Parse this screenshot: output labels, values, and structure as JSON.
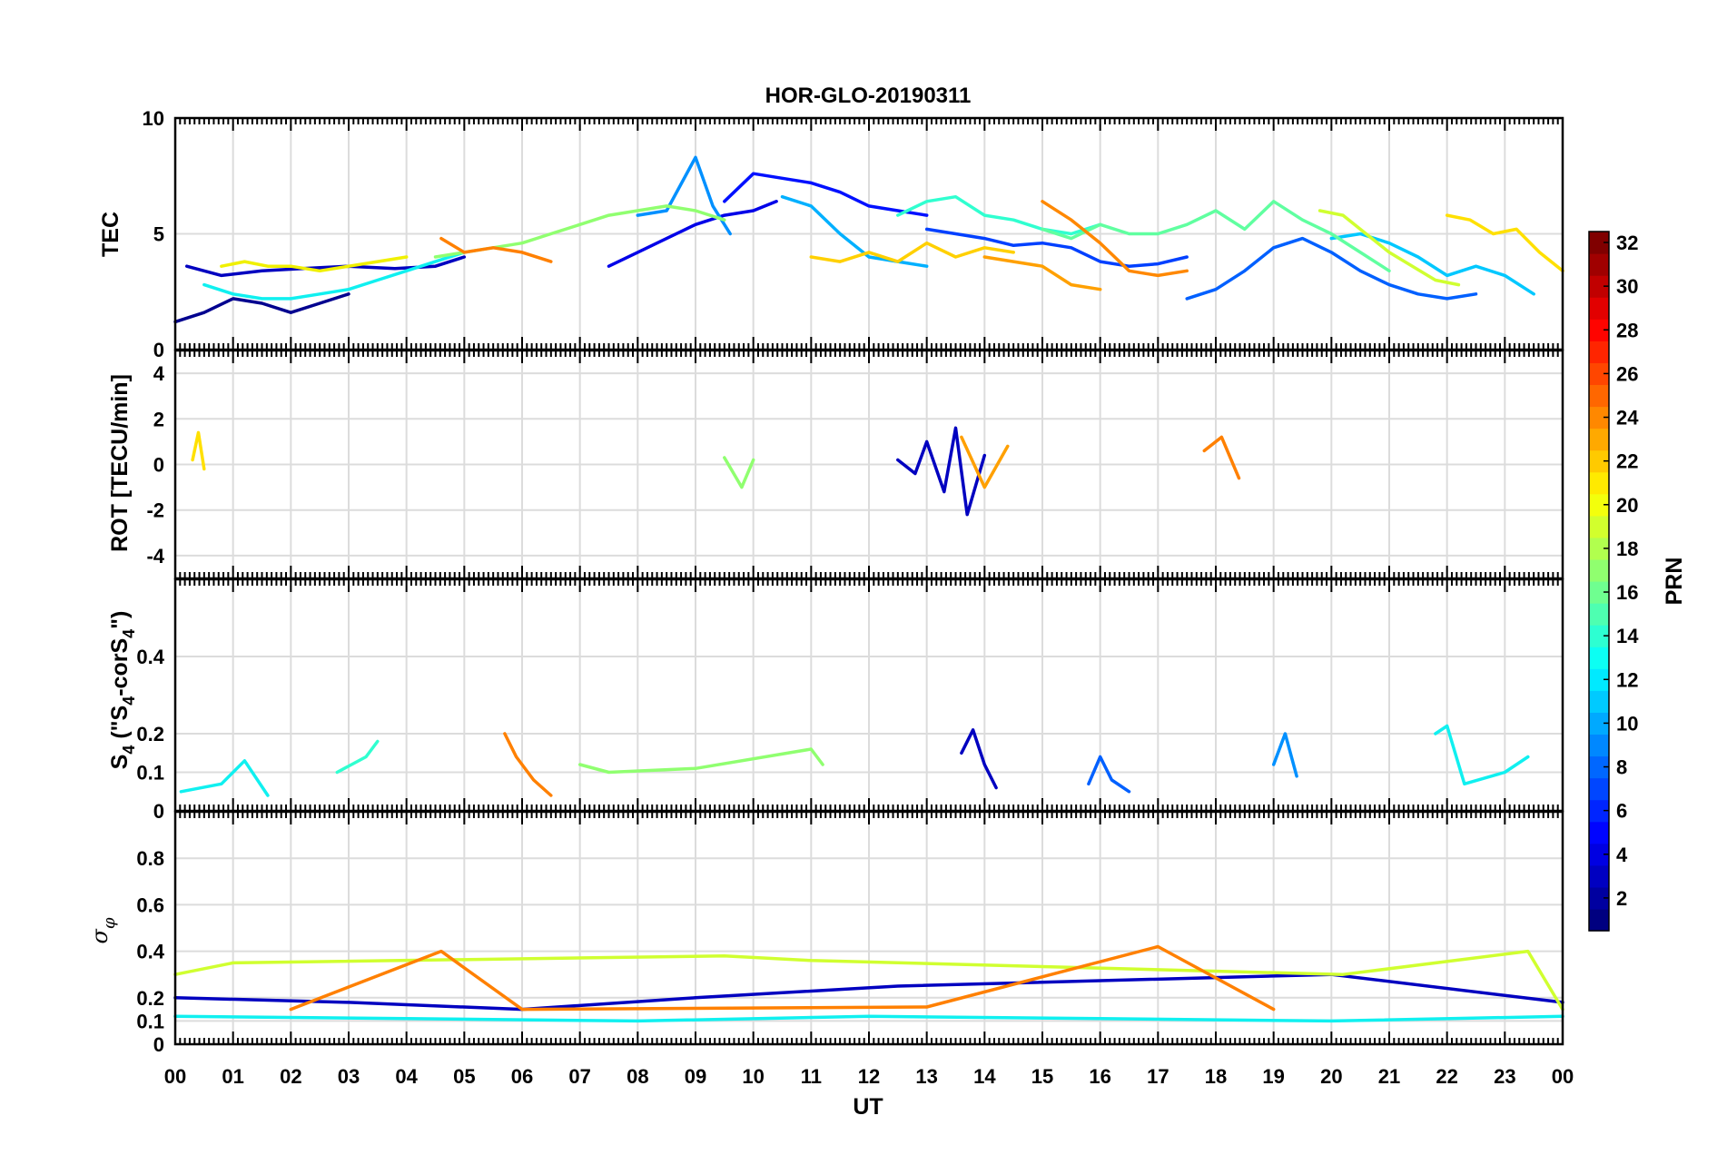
{
  "title": "HOR-GLO-20190311",
  "x_axis": {
    "label": "UT",
    "tick_labels": [
      "00",
      "01",
      "02",
      "03",
      "04",
      "05",
      "06",
      "07",
      "08",
      "09",
      "10",
      "11",
      "12",
      "13",
      "14",
      "15",
      "16",
      "17",
      "18",
      "19",
      "20",
      "21",
      "22",
      "23",
      "00"
    ]
  },
  "colorbar": {
    "label": "PRN",
    "range": [
      1,
      32
    ],
    "tick_labels": [
      "2",
      "4",
      "6",
      "8",
      "10",
      "12",
      "14",
      "16",
      "18",
      "20",
      "22",
      "24",
      "26",
      "28",
      "30",
      "32"
    ],
    "colormap": "jet"
  },
  "panels": [
    {
      "id": "tec",
      "ylabel": "TEC",
      "ylim": [
        0,
        10
      ],
      "y_ticks": [
        "0",
        "5",
        "10"
      ]
    },
    {
      "id": "rot",
      "ylabel": "ROT [TECU/min]",
      "ylim": [
        -5,
        5
      ],
      "y_ticks": [
        "-4",
        "-2",
        "0",
        "2",
        "4"
      ]
    },
    {
      "id": "s4",
      "ylabel_parts": [
        "S",
        "4",
        " (\"S",
        "4",
        "-corS",
        "4",
        "\")"
      ],
      "ylim": [
        0,
        0.6
      ],
      "y_ticks": [
        "0",
        "0.1",
        "0.2",
        "0.4"
      ]
    },
    {
      "id": "sigma",
      "ylabel_parts": [
        "σ",
        "φ"
      ],
      "ylim": [
        0,
        1
      ],
      "y_ticks": [
        "0",
        "0.1",
        "0.2",
        "0.4",
        "0.6",
        "0.8"
      ]
    }
  ],
  "chart_data": [
    {
      "type": "line",
      "title": "HOR-GLO-20190311",
      "ylabel": "TEC",
      "xlabel": "",
      "xlim": [
        0,
        24
      ],
      "ylim": [
        0,
        10
      ],
      "grid": true,
      "series": [
        {
          "prn": 1,
          "color": "#00008f",
          "x": [
            0,
            0.5,
            1.0,
            1.5,
            2.0,
            2.5,
            3.0
          ],
          "y": [
            1.2,
            1.6,
            2.2,
            2.0,
            1.6,
            2.0,
            2.4
          ]
        },
        {
          "prn": 2,
          "color": "#0000c0",
          "x": [
            0.2,
            0.8,
            1.5,
            2.2,
            3.0,
            3.8,
            4.5,
            5.0
          ],
          "y": [
            3.6,
            3.2,
            3.4,
            3.5,
            3.6,
            3.5,
            3.6,
            4.0
          ]
        },
        {
          "prn": 3,
          "color": "#0000e8",
          "x": [
            7.5,
            8.0,
            8.5,
            9.0,
            9.5,
            10.0,
            10.4
          ],
          "y": [
            3.6,
            4.2,
            4.8,
            5.4,
            5.8,
            6.0,
            6.4
          ]
        },
        {
          "prn": 4,
          "color": "#0010ff",
          "x": [
            9.5,
            10.0,
            10.5,
            11.0,
            11.5,
            12.0,
            12.5,
            13.0
          ],
          "y": [
            6.4,
            7.6,
            7.4,
            7.2,
            6.8,
            6.2,
            6.0,
            5.8
          ]
        },
        {
          "prn": 5,
          "color": "#0040ff",
          "x": [
            13.0,
            13.5,
            14.0,
            14.5,
            15.0,
            15.5,
            16.0,
            16.5,
            17.0,
            17.5
          ],
          "y": [
            5.2,
            5.0,
            4.8,
            4.5,
            4.6,
            4.4,
            3.8,
            3.6,
            3.7,
            4.0
          ]
        },
        {
          "prn": 6,
          "color": "#0060ff",
          "x": [
            17.5,
            18.0,
            18.5,
            19.0,
            19.5,
            20.0,
            20.5,
            21.0,
            21.5,
            22.0,
            22.5
          ],
          "y": [
            2.2,
            2.6,
            3.4,
            4.4,
            4.8,
            4.2,
            3.4,
            2.8,
            2.4,
            2.2,
            2.4
          ]
        },
        {
          "prn": 7,
          "color": "#0090ff",
          "x": [
            8.0,
            8.5,
            9.0,
            9.3,
            9.6
          ],
          "y": [
            5.8,
            6.0,
            8.3,
            6.2,
            5.0
          ]
        },
        {
          "prn": 9,
          "color": "#00b0ff",
          "x": [
            10.5,
            11.0,
            11.5,
            12.0,
            12.5,
            13.0
          ],
          "y": [
            6.6,
            6.2,
            5.0,
            4.0,
            3.8,
            3.6
          ]
        },
        {
          "prn": 10,
          "color": "#00c8ff",
          "x": [
            20.0,
            20.5,
            21.0,
            21.5,
            22.0,
            22.5,
            23.0,
            23.5
          ],
          "y": [
            4.8,
            5.0,
            4.6,
            4.0,
            3.2,
            3.6,
            3.2,
            2.4
          ]
        },
        {
          "prn": 12,
          "color": "#10f0f0",
          "x": [
            0.5,
            1.0,
            1.5,
            2.0,
            2.5,
            3.0,
            3.5,
            4.0,
            4.5,
            5.0
          ],
          "y": [
            2.8,
            2.4,
            2.2,
            2.2,
            2.4,
            2.6,
            3.0,
            3.4,
            3.8,
            4.2
          ]
        },
        {
          "prn": 14,
          "color": "#30ffd0",
          "x": [
            12.5,
            13.0,
            13.5,
            14.0,
            14.5,
            15.0,
            15.5,
            16.0
          ],
          "y": [
            5.8,
            6.4,
            6.6,
            5.8,
            5.6,
            5.2,
            5.0,
            5.4
          ]
        },
        {
          "prn": 16,
          "color": "#60ffa0",
          "x": [
            15.0,
            15.5,
            16.0,
            16.5,
            17.0,
            17.5,
            18.0,
            18.5,
            19.0,
            19.5,
            20.0,
            20.5,
            21.0
          ],
          "y": [
            5.2,
            4.8,
            5.4,
            5.0,
            5.0,
            5.4,
            6.0,
            5.2,
            6.4,
            5.6,
            5.0,
            4.2,
            3.4
          ]
        },
        {
          "prn": 17,
          "color": "#90ff70",
          "x": [
            4.5,
            5.0,
            5.5,
            6.0,
            6.5,
            7.0,
            7.5,
            8.0,
            8.5,
            9.0,
            9.5
          ],
          "y": [
            4.0,
            4.2,
            4.4,
            4.6,
            5.0,
            5.4,
            5.8,
            6.0,
            6.2,
            6.0,
            5.6
          ]
        },
        {
          "prn": 19,
          "color": "#d0ff30",
          "x": [
            19.8,
            20.2,
            20.6,
            21.0,
            21.4,
            21.8,
            22.2
          ],
          "y": [
            6.0,
            5.8,
            5.0,
            4.2,
            3.6,
            3.0,
            2.8
          ]
        },
        {
          "prn": 20,
          "color": "#f0f000",
          "x": [
            0.8,
            1.2,
            1.6,
            2.0,
            2.5,
            3.0,
            3.5,
            4.0
          ],
          "y": [
            3.6,
            3.8,
            3.6,
            3.6,
            3.4,
            3.6,
            3.8,
            4.0
          ]
        },
        {
          "prn": 21,
          "color": "#ffd000",
          "x": [
            11.0,
            11.5,
            12.0,
            12.5,
            13.0,
            13.5,
            14.0,
            14.5
          ],
          "y": [
            4.0,
            3.8,
            4.2,
            3.8,
            4.6,
            4.0,
            4.4,
            4.2
          ]
        },
        {
          "prn": 21,
          "color": "#ffe000",
          "x": [
            22.0,
            22.4,
            22.8,
            23.2,
            23.6,
            24.0
          ],
          "y": [
            5.8,
            5.6,
            5.0,
            5.2,
            4.2,
            3.4
          ]
        },
        {
          "prn": 22,
          "color": "#ffa000",
          "x": [
            14.0,
            14.5,
            15.0,
            15.5,
            16.0
          ],
          "y": [
            4.0,
            3.8,
            3.6,
            2.8,
            2.6
          ]
        },
        {
          "prn": 23,
          "color": "#ff8000",
          "x": [
            4.6,
            5.0,
            5.5,
            6.0,
            6.5
          ],
          "y": [
            4.8,
            4.2,
            4.4,
            4.2,
            3.8
          ]
        },
        {
          "prn": 23,
          "color": "#ff8800",
          "x": [
            15.0,
            15.5,
            16.0,
            16.5,
            17.0,
            17.5
          ],
          "y": [
            6.4,
            5.6,
            4.6,
            3.4,
            3.2,
            3.4
          ]
        }
      ]
    },
    {
      "type": "line",
      "ylabel": "ROT [TECU/min]",
      "xlim": [
        0,
        24
      ],
      "ylim": [
        -5,
        5
      ],
      "grid": true,
      "series": [
        {
          "prn": 2,
          "color": "#0000c0",
          "x": [
            12.5,
            12.8,
            13.0,
            13.3,
            13.5,
            13.7,
            14.0
          ],
          "y": [
            0.2,
            -0.4,
            1.0,
            -1.2,
            1.6,
            -2.2,
            0.4
          ]
        },
        {
          "prn": 16,
          "color": "#90ff70",
          "x": [
            9.5,
            9.8,
            10.0
          ],
          "y": [
            0.3,
            -1.0,
            0.2
          ]
        },
        {
          "prn": 18,
          "color": "#ffe000",
          "x": [
            0.3,
            0.4,
            0.5
          ],
          "y": [
            0.2,
            1.4,
            -0.2
          ]
        },
        {
          "prn": 22,
          "color": "#ffa000",
          "x": [
            13.6,
            14.0,
            14.4
          ],
          "y": [
            1.2,
            -1.0,
            0.8
          ]
        },
        {
          "prn": 23,
          "color": "#ff8000",
          "x": [
            17.8,
            18.1,
            18.4
          ],
          "y": [
            0.6,
            1.2,
            -0.6
          ]
        }
      ]
    },
    {
      "type": "line",
      "ylabel": "S4 (\"S4-corS4\")",
      "xlim": [
        0,
        24
      ],
      "ylim": [
        0,
        0.6
      ],
      "grid": true,
      "series": [
        {
          "prn": 2,
          "color": "#0000c0",
          "x": [
            13.6,
            13.8,
            14.0,
            14.2
          ],
          "y": [
            0.15,
            0.21,
            0.12,
            0.06
          ]
        },
        {
          "prn": 6,
          "color": "#0060ff",
          "x": [
            15.8,
            16.0,
            16.2,
            16.5
          ],
          "y": [
            0.07,
            0.14,
            0.08,
            0.05
          ]
        },
        {
          "prn": 9,
          "color": "#0090ff",
          "x": [
            19.0,
            19.2,
            19.4
          ],
          "y": [
            0.12,
            0.2,
            0.09
          ]
        },
        {
          "prn": 11,
          "color": "#10f0f0",
          "x": [
            21.8,
            22.0,
            22.3,
            23.0,
            23.4
          ],
          "y": [
            0.2,
            0.22,
            0.07,
            0.1,
            0.14
          ]
        },
        {
          "prn": 12,
          "color": "#10f0f0",
          "x": [
            0.1,
            0.8,
            1.2,
            1.6
          ],
          "y": [
            0.05,
            0.07,
            0.13,
            0.04
          ]
        },
        {
          "prn": 14,
          "color": "#30ffd0",
          "x": [
            2.8,
            3.3,
            3.5
          ],
          "y": [
            0.1,
            0.14,
            0.18
          ]
        },
        {
          "prn": 17,
          "color": "#90ff70",
          "x": [
            7.0,
            7.5,
            9.0,
            11.0,
            11.2
          ],
          "y": [
            0.12,
            0.1,
            0.11,
            0.16,
            0.12
          ]
        },
        {
          "prn": 23,
          "color": "#ff8000",
          "x": [
            5.7,
            5.9,
            6.2,
            6.5
          ],
          "y": [
            0.2,
            0.14,
            0.08,
            0.04
          ]
        }
      ]
    },
    {
      "type": "line",
      "ylabel": "σφ",
      "xlim": [
        0,
        24
      ],
      "ylim": [
        0,
        1
      ],
      "grid": true,
      "series": [
        {
          "prn": 2,
          "color": "#0000c0",
          "x": [
            0,
            3.0,
            6.0,
            9.0,
            12.5,
            20.0,
            24.0
          ],
          "y": [
            0.2,
            0.18,
            0.15,
            0.2,
            0.25,
            0.3,
            0.18
          ]
        },
        {
          "prn": 12,
          "color": "#10f0f0",
          "x": [
            0,
            4.0,
            8.0,
            12.0,
            16.0,
            20.0,
            24.0
          ],
          "y": [
            0.12,
            0.11,
            0.1,
            0.12,
            0.11,
            0.1,
            0.12
          ]
        },
        {
          "prn": 19,
          "color": "#d0ff30",
          "x": [
            0,
            1.0,
            9.5,
            11.0,
            20.2,
            23.4,
            24.0
          ],
          "y": [
            0.3,
            0.35,
            0.38,
            0.36,
            0.3,
            0.4,
            0.15
          ]
        },
        {
          "prn": 23,
          "color": "#ff8000",
          "x": [
            2.0,
            4.6,
            6.0,
            13.0,
            17.0,
            19.0
          ],
          "y": [
            0.15,
            0.4,
            0.15,
            0.16,
            0.42,
            0.15
          ]
        }
      ]
    }
  ]
}
